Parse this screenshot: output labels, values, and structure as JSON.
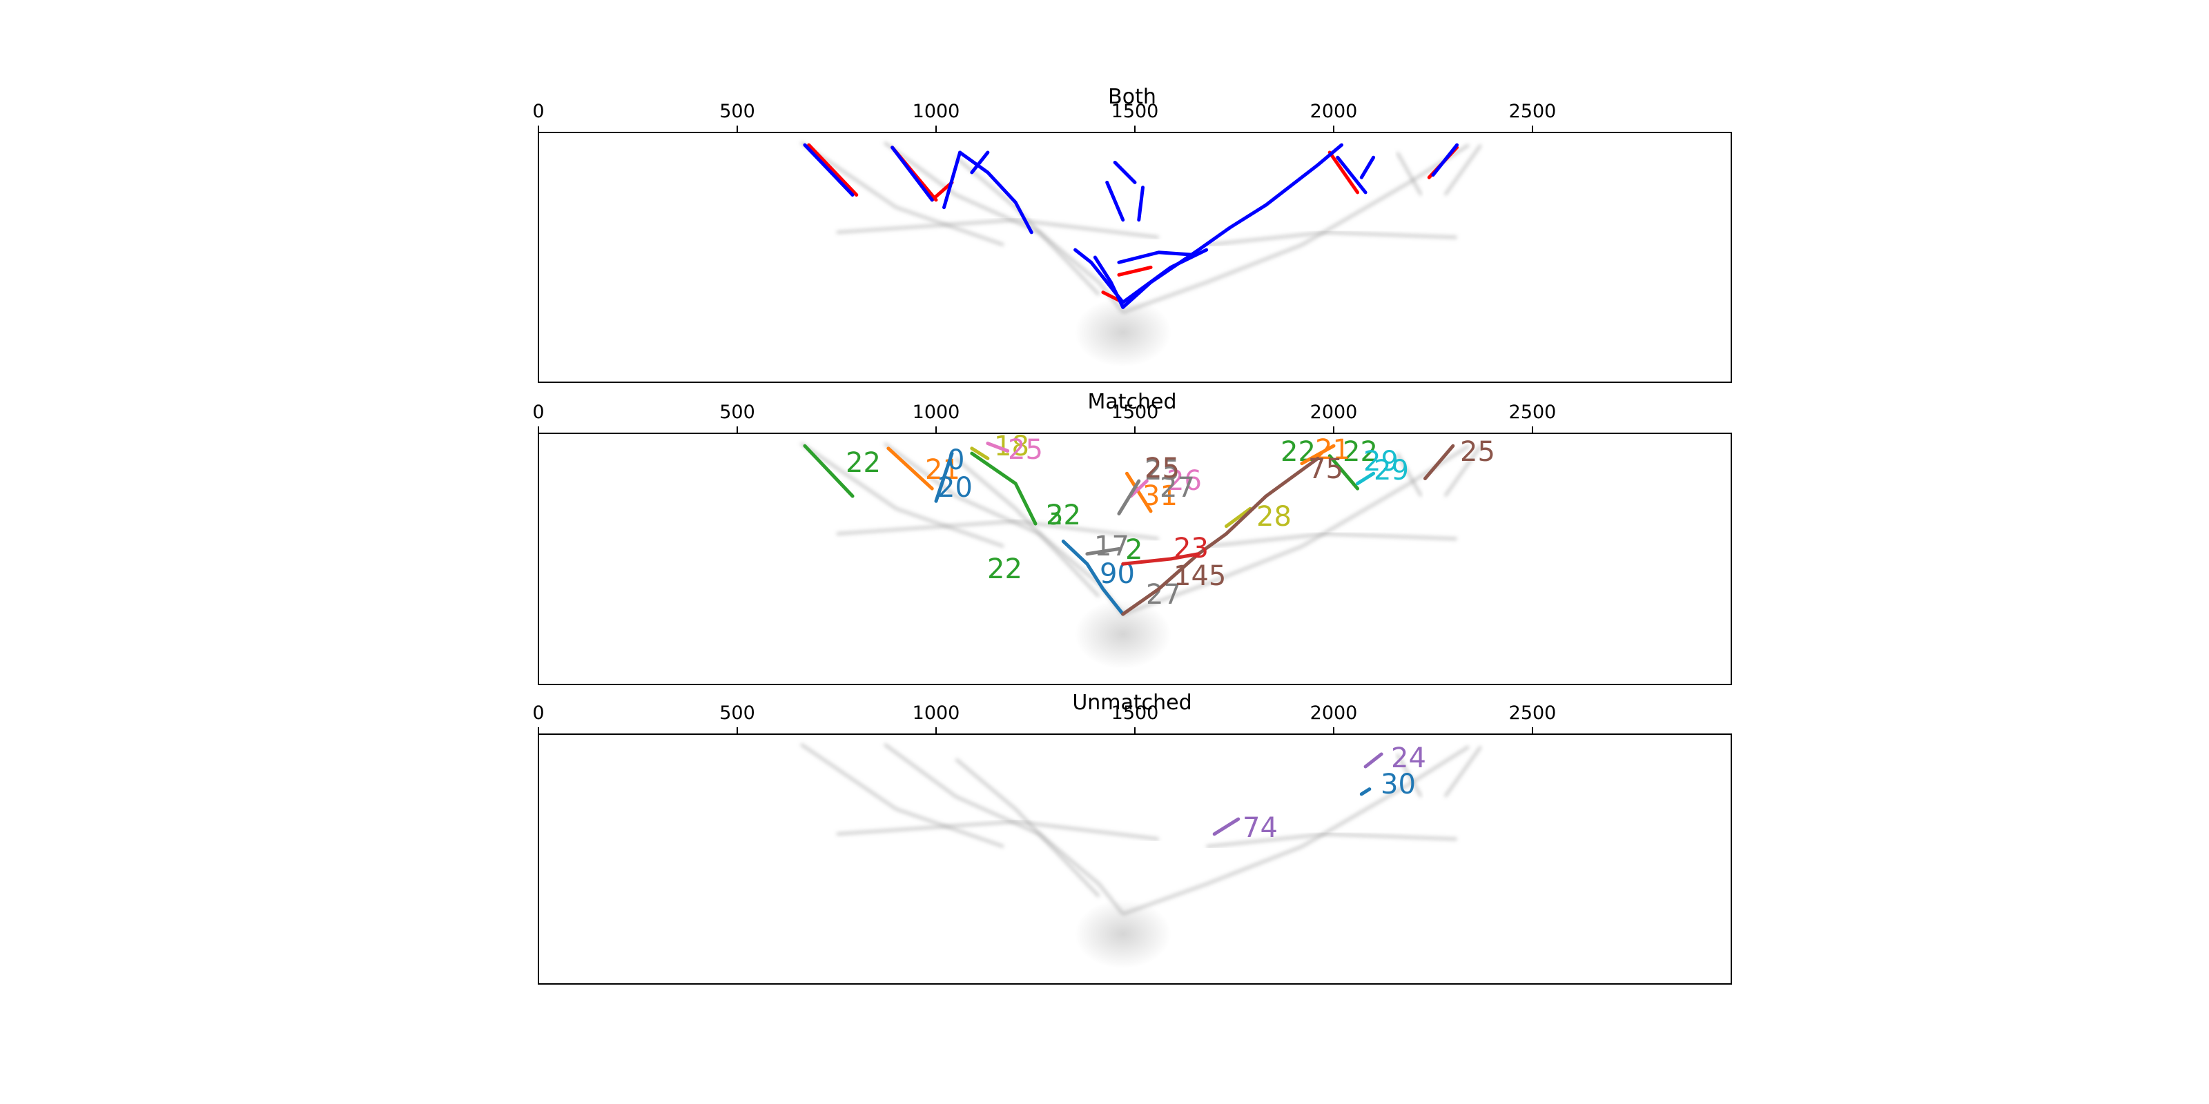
{
  "chart_data": [
    {
      "type": "line",
      "title": "Both",
      "xlim": [
        0,
        3000
      ],
      "ylim": [
        0,
        1
      ],
      "x_ticks": [
        "0",
        "500",
        "1000",
        "1500",
        "2000",
        "2500"
      ],
      "grid": false,
      "background": "grayscale density image of traces",
      "series": [
        {
          "color": "#ff0000",
          "segments": [
            [
              [
                680,
                0.05
              ],
              [
                800,
                0.25
              ]
            ],
            [
              [
                890,
                0.06
              ],
              [
                1000,
                0.27
              ]
            ],
            [
              [
                1040,
                0.2
              ],
              [
                990,
                0.27
              ]
            ],
            [
              [
                1460,
                0.57
              ],
              [
                1540,
                0.54
              ]
            ],
            [
              [
                1420,
                0.64
              ],
              [
                1470,
                0.68
              ]
            ],
            [
              [
                1990,
                0.08
              ],
              [
                2060,
                0.24
              ]
            ],
            [
              [
                2240,
                0.18
              ],
              [
                2310,
                0.06
              ]
            ]
          ]
        },
        {
          "color": "#0000ff",
          "segments": [
            [
              [
                670,
                0.05
              ],
              [
                790,
                0.25
              ]
            ],
            [
              [
                890,
                0.06
              ],
              [
                990,
                0.27
              ]
            ],
            [
              [
                1020,
                0.3
              ],
              [
                1060,
                0.08
              ]
            ],
            [
              [
                1060,
                0.08
              ],
              [
                1130,
                0.16
              ],
              [
                1200,
                0.28
              ],
              [
                1240,
                0.4
              ]
            ],
            [
              [
                1130,
                0.08
              ],
              [
                1090,
                0.16
              ]
            ],
            [
              [
                1350,
                0.47
              ],
              [
                1390,
                0.52
              ],
              [
                1420,
                0.58
              ],
              [
                1470,
                0.68
              ],
              [
                1590,
                0.54
              ],
              [
                1680,
                0.47
              ]
            ],
            [
              [
                1400,
                0.5
              ],
              [
                1440,
                0.6
              ],
              [
                1470,
                0.7
              ],
              [
                1540,
                0.6
              ],
              [
                1660,
                0.47
              ],
              [
                1740,
                0.38
              ],
              [
                1830,
                0.29
              ],
              [
                1960,
                0.13
              ],
              [
                2020,
                0.05
              ]
            ],
            [
              [
                1460,
                0.52
              ],
              [
                1560,
                0.48
              ],
              [
                1650,
                0.49
              ]
            ],
            [
              [
                1430,
                0.2
              ],
              [
                1470,
                0.35
              ]
            ],
            [
              [
                1500,
                0.2
              ],
              [
                1450,
                0.12
              ]
            ],
            [
              [
                1520,
                0.22
              ],
              [
                1510,
                0.35
              ]
            ],
            [
              [
                2010,
                0.1
              ],
              [
                2080,
                0.24
              ]
            ],
            [
              [
                2070,
                0.18
              ],
              [
                2100,
                0.1
              ]
            ],
            [
              [
                2250,
                0.17
              ],
              [
                2310,
                0.05
              ]
            ]
          ]
        }
      ]
    },
    {
      "type": "line",
      "title": "Matched",
      "xlim": [
        0,
        3000
      ],
      "ylim": [
        0,
        1
      ],
      "x_ticks": [
        "0",
        "500",
        "1000",
        "1500",
        "2000",
        "2500"
      ],
      "grid": false,
      "background": "grayscale density image of traces",
      "series": [
        {
          "color": "#2ca02c",
          "labels": [
            "22",
            "22",
            "22",
            "32",
            "2",
            "22",
            "22"
          ],
          "segments": [
            [
              [
                670,
                0.05
              ],
              [
                790,
                0.25
              ]
            ],
            [
              [
                1090,
                0.08
              ],
              [
                1200,
                0.2
              ],
              [
                1250,
                0.36
              ]
            ],
            [
              [
                1990,
                0.09
              ],
              [
                2060,
                0.22
              ]
            ]
          ]
        },
        {
          "color": "#ff7f0e",
          "labels": [
            "21",
            "31",
            "21"
          ],
          "segments": [
            [
              [
                880,
                0.06
              ],
              [
                990,
                0.22
              ]
            ],
            [
              [
                1480,
                0.16
              ],
              [
                1540,
                0.31
              ]
            ],
            [
              [
                1920,
                0.12
              ],
              [
                2000,
                0.05
              ]
            ]
          ]
        },
        {
          "color": "#1f77b4",
          "labels": [
            "0",
            "20",
            "90"
          ],
          "segments": [
            [
              [
                1000,
                0.27
              ],
              [
                1040,
                0.08
              ]
            ],
            [
              [
                1320,
                0.43
              ],
              [
                1380,
                0.52
              ],
              [
                1420,
                0.62
              ],
              [
                1470,
                0.72
              ]
            ]
          ]
        },
        {
          "color": "#bcbd22",
          "labels": [
            "18",
            "28"
          ],
          "segments": [
            [
              [
                1090,
                0.06
              ],
              [
                1130,
                0.1
              ]
            ],
            [
              [
                1730,
                0.37
              ],
              [
                1790,
                0.3
              ]
            ]
          ]
        },
        {
          "color": "#e377c2",
          "labels": [
            "25",
            "26"
          ],
          "segments": [
            [
              [
                1130,
                0.04
              ],
              [
                1180,
                0.07
              ]
            ],
            [
              [
                1490,
                0.25
              ],
              [
                1530,
                0.19
              ]
            ]
          ]
        },
        {
          "color": "#7f7f7f",
          "labels": [
            "27",
            "25",
            "17",
            "27"
          ],
          "segments": [
            [
              [
                1460,
                0.32
              ],
              [
                1510,
                0.19
              ]
            ],
            [
              [
                1380,
                0.48
              ],
              [
                1460,
                0.46
              ]
            ]
          ]
        },
        {
          "color": "#8c564b",
          "labels": [
            "25",
            "75",
            "145",
            "25"
          ],
          "segments": [
            [
              [
                1470,
                0.72
              ],
              [
                1560,
                0.62
              ],
              [
                1660,
                0.48
              ],
              [
                1730,
                0.4
              ],
              [
                1830,
                0.25
              ],
              [
                1960,
                0.1
              ]
            ],
            [
              [
                2230,
                0.18
              ],
              [
                2300,
                0.05
              ]
            ]
          ]
        },
        {
          "color": "#d62728",
          "labels": [
            "23"
          ],
          "segments": [
            [
              [
                1470,
                0.52
              ],
              [
                1590,
                0.5
              ],
              [
                1660,
                0.48
              ]
            ]
          ]
        },
        {
          "color": "#17becf",
          "labels": [
            "29",
            "29"
          ],
          "segments": [
            [
              [
                2060,
                0.2
              ],
              [
                2100,
                0.16
              ]
            ]
          ]
        }
      ]
    },
    {
      "type": "line",
      "title": "Unmatched",
      "xlim": [
        0,
        3000
      ],
      "ylim": [
        0,
        1
      ],
      "x_ticks": [
        "0",
        "500",
        "1000",
        "1500",
        "2000",
        "2500"
      ],
      "grid": false,
      "background": "grayscale density image of traces",
      "series": [
        {
          "color": "#9467bd",
          "labels": [
            "24",
            "74"
          ],
          "segments": [
            [
              [
                2080,
                0.13
              ],
              [
                2120,
                0.08
              ]
            ],
            [
              [
                1700,
                0.4
              ],
              [
                1760,
                0.34
              ]
            ]
          ]
        },
        {
          "color": "#1f77b4",
          "labels": [
            "30"
          ],
          "segments": [
            [
              [
                2070,
                0.24
              ],
              [
                2090,
                0.22
              ]
            ]
          ]
        }
      ]
    }
  ]
}
